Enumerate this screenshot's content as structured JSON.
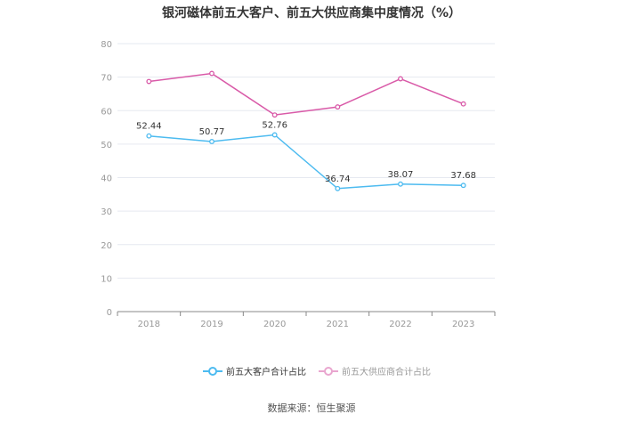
{
  "chart_data": {
    "type": "line",
    "title": "银河磁体前五大客户、前五大供应商集中度情况（%）",
    "categories": [
      "2018",
      "2019",
      "2020",
      "2021",
      "2022",
      "2023"
    ],
    "ylim": [
      0,
      80
    ],
    "yticks": [
      0,
      10,
      20,
      30,
      40,
      50,
      60,
      70,
      80
    ],
    "grid": true,
    "legend_position": "bottom",
    "series": [
      {
        "name": "前五大客户合计占比",
        "color": "#4dbbf0",
        "values": [
          52.44,
          50.77,
          52.76,
          36.74,
          38.07,
          37.68
        ],
        "labels": [
          "52.44",
          "50.77",
          "52.76",
          "36.74",
          "38.07",
          "37.68"
        ]
      },
      {
        "name": "前五大供应商合计占比",
        "color": "#d95aa8",
        "legend_color": "#e9a6cf",
        "values": [
          68.7,
          71.1,
          58.7,
          61.1,
          69.5,
          62.0
        ]
      }
    ]
  },
  "source": "数据来源：恒生聚源"
}
